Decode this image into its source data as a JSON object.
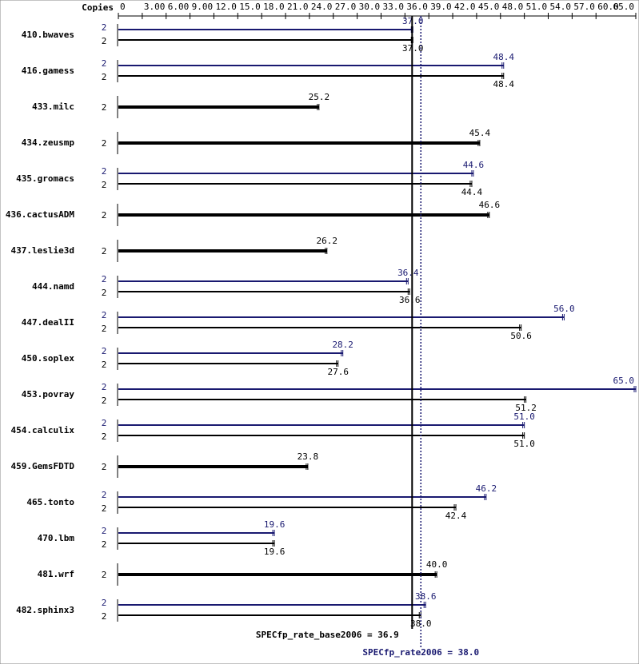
{
  "chart_data": {
    "type": "bar",
    "orientation": "horizontal",
    "copies_label": "Copies",
    "categories": [
      "410.bwaves",
      "416.gamess",
      "433.milc",
      "434.zeusmp",
      "435.gromacs",
      "436.cactusADM",
      "437.leslie3d",
      "444.namd",
      "447.dealII",
      "450.soplex",
      "453.povray",
      "454.calculix",
      "459.GemsFDTD",
      "465.tonto",
      "470.lbm",
      "481.wrf",
      "482.sphinx3"
    ],
    "series": [
      {
        "color": "#000000",
        "copies": [
          2,
          2,
          2,
          2,
          2,
          2,
          2,
          2,
          2,
          2,
          2,
          2,
          2,
          2,
          2,
          2,
          2
        ],
        "values": [
          37,
          48.4,
          25.2,
          45.4,
          44.4,
          46.6,
          26.2,
          36.6,
          50.6,
          27.6,
          51.2,
          51,
          23.8,
          42.4,
          19.6,
          40,
          38
        ],
        "value_labels": [
          "37.0",
          "48.4",
          "25.2",
          "45.4",
          "44.4",
          "46.6",
          "26.2",
          "36.6",
          "50.6",
          "27.6",
          "51.2",
          "51.0",
          "23.8",
          "42.4",
          "19.6",
          "40.0",
          "38.0"
        ]
      },
      {
        "color": "#191970",
        "copies": [
          2,
          2,
          null,
          null,
          2,
          null,
          null,
          2,
          2,
          2,
          2,
          2,
          null,
          2,
          2,
          null,
          2
        ],
        "values": [
          37,
          48.4,
          null,
          null,
          44.6,
          null,
          null,
          36.4,
          56,
          28.2,
          65,
          51,
          null,
          46.2,
          19.6,
          null,
          38.6
        ],
        "value_labels": [
          "37.0",
          "48.4",
          null,
          null,
          "44.6",
          null,
          null,
          "36.4",
          "56.0",
          "28.2",
          "65.0",
          "51.0",
          null,
          "46.2",
          "19.6",
          null,
          "38.6"
        ]
      }
    ],
    "xlim": [
      0,
      65
    ],
    "xticks": [
      0,
      {
        "value": 3,
        "label": "3.00"
      },
      {
        "value": 6,
        "label": "6.00"
      },
      {
        "value": 9,
        "label": "9.00"
      },
      {
        "value": 12,
        "label": "12.0"
      },
      {
        "value": 15,
        "label": "15.0"
      },
      {
        "value": 18,
        "label": "18.0"
      },
      {
        "value": 21,
        "label": "21.0"
      },
      {
        "value": 24,
        "label": "24.0"
      },
      {
        "value": 27,
        "label": "27.0"
      },
      {
        "value": 30,
        "label": "30.0"
      },
      {
        "value": 33,
        "label": "33.0"
      },
      {
        "value": 36,
        "label": "36.0"
      },
      {
        "value": 39,
        "label": "39.0"
      },
      {
        "value": 42,
        "label": "42.0"
      },
      {
        "value": 45,
        "label": "45.0"
      },
      {
        "value": 48,
        "label": "48.0"
      },
      {
        "value": 51,
        "label": "51.0"
      },
      {
        "value": 54,
        "label": "54.0"
      },
      {
        "value": 57,
        "label": "57.0"
      },
      {
        "value": 60,
        "label": "60.0"
      },
      {
        "value": 65,
        "label": "65.0"
      }
    ],
    "reference_lines": [
      {
        "label": "SPECfp_rate_base2006 = 36.9",
        "value": 36.9,
        "color": "#000000",
        "style": "solid"
      },
      {
        "label": "SPECfp_rate2006 = 38.0",
        "value": 38,
        "color": "#191970",
        "style": "dotted"
      }
    ]
  }
}
